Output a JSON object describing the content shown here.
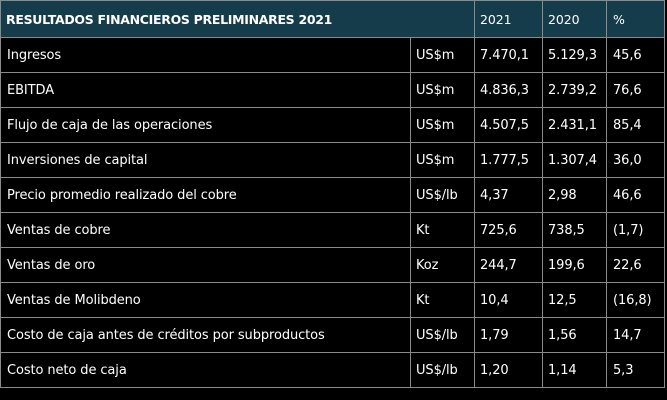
{
  "colors": {
    "header_bg": "#153c4a",
    "body_bg": "#000000",
    "border": "#8a8a8a",
    "text": "#ffffff"
  },
  "header": {
    "title": "RESULTADOS FINANCIEROS PRELIMINARES 2021",
    "col_2021": "2021",
    "col_2020": "2020",
    "col_pct": "%"
  },
  "rows": [
    {
      "label": "Ingresos",
      "unit": "US$m",
      "v2021": "7.470,1",
      "v2020": "5.129,3",
      "pct": "45,6"
    },
    {
      "label": "EBITDA",
      "unit": "US$m",
      "v2021": "4.836,3",
      "v2020": "2.739,2",
      "pct": "76,6"
    },
    {
      "label": "Flujo de caja de las operaciones",
      "unit": "US$m",
      "v2021": "4.507,5",
      "v2020": "2.431,1",
      "pct": "85,4"
    },
    {
      "label": "Inversiones de capital",
      "unit": "US$m",
      "v2021": "1.777,5",
      "v2020": "1.307,4",
      "pct": "36,0"
    },
    {
      "label": "Precio promedio realizado del cobre",
      "unit": "US$/lb",
      "v2021": "4,37",
      "v2020": "2,98",
      "pct": "46,6"
    },
    {
      "label": "Ventas de cobre",
      "unit": "Kt",
      "v2021": "725,6",
      "v2020": "738,5",
      "pct": "(1,7)"
    },
    {
      "label": "Ventas de oro",
      "unit": "Koz",
      "v2021": "244,7",
      "v2020": "199,6",
      "pct": "22,6"
    },
    {
      "label": "Ventas de Molibdeno",
      "unit": "Kt",
      "v2021": "10,4",
      "v2020": "12,5",
      "pct": "(16,8)"
    },
    {
      "label": "Costo de caja antes de créditos por subproductos",
      "unit": "US$/lb",
      "v2021": "1,79",
      "v2020": "1,56",
      "pct": "14,7"
    },
    {
      "label": "Costo neto de caja",
      "unit": "US$/lb",
      "v2021": "1,20",
      "v2020": "1,14",
      "pct": "5,3"
    }
  ]
}
